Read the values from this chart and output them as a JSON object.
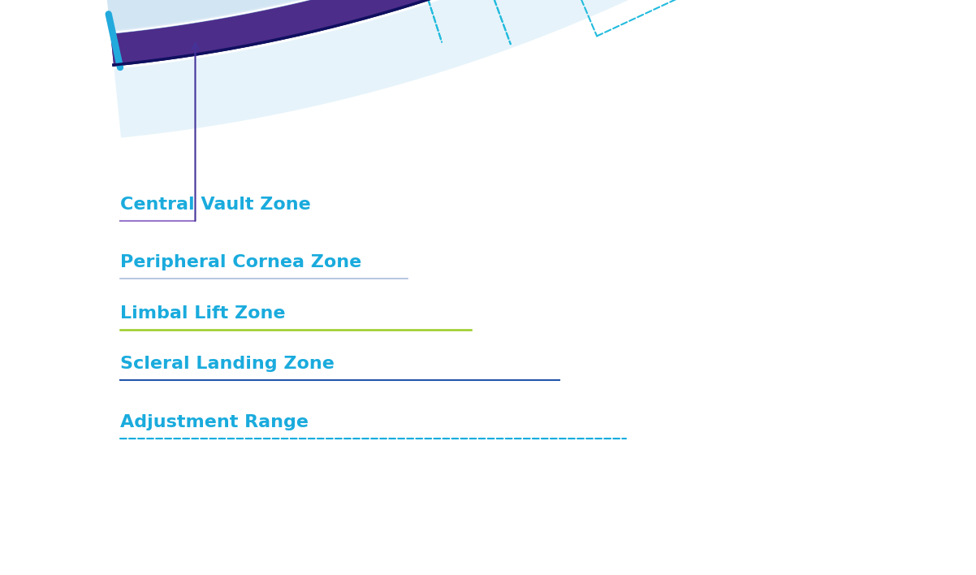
{
  "background_color": "#ffffff",
  "text_color": "#1aabdd",
  "zones": [
    {
      "name": "Central Vault Zone",
      "line_color": "#8877cc",
      "arrow_color": "#443399",
      "ls": "solid",
      "lw": 1.5
    },
    {
      "name": "Peripheral Cornea Zone",
      "line_color": "#aabbdd",
      "arrow_color": "#7788aa",
      "ls": "solid",
      "lw": 1.2
    },
    {
      "name": "Limbal Lift Zone",
      "line_color": "#99bb22",
      "arrow_color": "#77aa11",
      "ls": "solid",
      "lw": 1.8
    },
    {
      "name": "Scleral Landing Zone",
      "line_color": "#2255aa",
      "arrow_color": "#223388",
      "ls": "solid",
      "lw": 1.5
    },
    {
      "name": "Adjustment Range",
      "line_color": "#00aadd",
      "arrow_color": "#00aadd",
      "ls": "dashed",
      "lw": 1.5
    }
  ],
  "zone_colors": [
    "#4d2d8a",
    "#8899bb",
    "#88bb22",
    "#1e5cb3"
  ],
  "lens_outline_color": "#1133aa",
  "lens_glow_color1": "#cce4f5",
  "lens_glow_color2": "#ddeeff",
  "dashed_color": "#22bbdd",
  "vbar_color": "#22aadd"
}
